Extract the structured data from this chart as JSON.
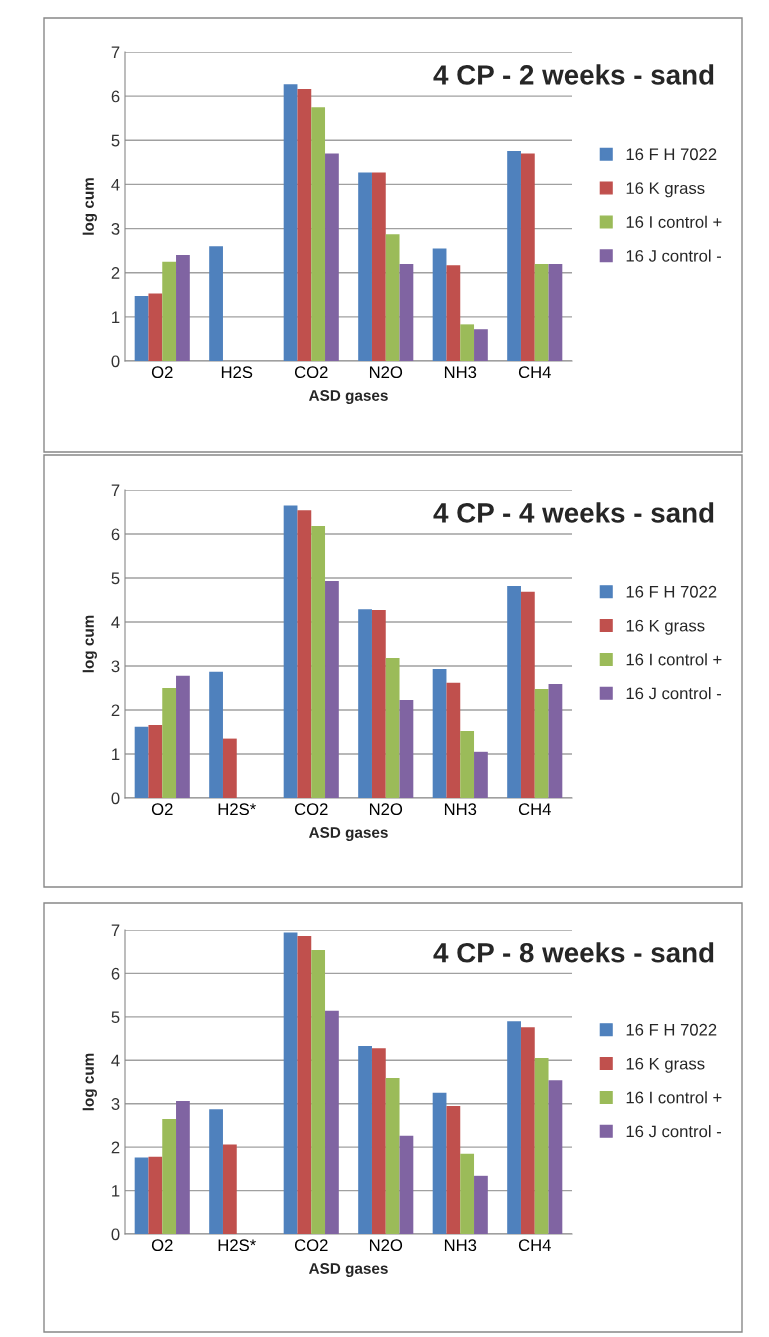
{
  "chart_data": [
    {
      "type": "bar",
      "title": "4 CP - 2 weeks - sand",
      "xlabel": "ASD gases",
      "ylabel": "log cum",
      "categories": [
        "O2",
        "H2S",
        "CO2",
        "N2O",
        "NH3",
        "CH4"
      ],
      "ylim": [
        0,
        7
      ],
      "yticks": [
        0,
        1,
        2,
        3,
        4,
        5,
        6,
        7
      ],
      "grid": "y",
      "legend": "right",
      "series": [
        {
          "name": "16 F H 7022",
          "color": "#4f81bd",
          "values": [
            1.47,
            2.6,
            6.27,
            4.27,
            2.55,
            4.76
          ]
        },
        {
          "name": "16 K grass",
          "color": "#c0504d",
          "values": [
            1.53,
            null,
            6.16,
            4.27,
            2.17,
            4.7
          ]
        },
        {
          "name": "16 I control +",
          "color": "#9bbb59",
          "values": [
            2.25,
            null,
            5.75,
            2.87,
            0.83,
            2.2
          ]
        },
        {
          "name": "16 J control -",
          "color": "#8064a2",
          "values": [
            2.4,
            null,
            4.7,
            2.2,
            0.72,
            2.2
          ]
        }
      ]
    },
    {
      "type": "bar",
      "title": "4 CP - 4 weeks - sand",
      "xlabel": "ASD gases",
      "ylabel": "log cum",
      "categories": [
        "O2",
        "H2S*",
        "CO2",
        "N2O",
        "NH3",
        "CH4"
      ],
      "ylim": [
        0,
        7
      ],
      "yticks": [
        0,
        1,
        2,
        3,
        4,
        5,
        6,
        7
      ],
      "grid": "y",
      "legend": "right",
      "series": [
        {
          "name": "16 F H 7022",
          "color": "#4f81bd",
          "values": [
            1.62,
            2.87,
            6.65,
            4.29,
            2.93,
            4.82
          ]
        },
        {
          "name": "16 K grass",
          "color": "#c0504d",
          "values": [
            1.66,
            1.35,
            6.54,
            4.27,
            2.62,
            4.69
          ]
        },
        {
          "name": "16 I control +",
          "color": "#9bbb59",
          "values": [
            2.5,
            null,
            6.18,
            3.18,
            1.52,
            2.48
          ]
        },
        {
          "name": "16 J control -",
          "color": "#8064a2",
          "values": [
            2.78,
            null,
            4.93,
            2.23,
            1.05,
            2.59
          ]
        }
      ]
    },
    {
      "type": "bar",
      "title": "4 CP - 8 weeks - sand",
      "xlabel": "ASD gases",
      "ylabel": "log cum",
      "categories": [
        "O2",
        "H2S*",
        "CO2",
        "N2O",
        "NH3",
        "CH4"
      ],
      "ylim": [
        0,
        7
      ],
      "yticks": [
        0,
        1,
        2,
        3,
        4,
        5,
        6,
        7
      ],
      "grid": "y",
      "legend": "right",
      "series": [
        {
          "name": "16 F H 7022",
          "color": "#4f81bd",
          "values": [
            1.76,
            2.87,
            6.94,
            4.33,
            3.25,
            4.9
          ]
        },
        {
          "name": "16 K grass",
          "color": "#c0504d",
          "values": [
            1.78,
            2.06,
            6.86,
            4.28,
            2.95,
            4.76
          ]
        },
        {
          "name": "16 I control +",
          "color": "#9bbb59",
          "values": [
            2.65,
            null,
            6.54,
            3.59,
            1.85,
            4.05
          ]
        },
        {
          "name": "16 J control -",
          "color": "#8064a2",
          "values": [
            3.06,
            null,
            5.14,
            2.26,
            1.34,
            3.54
          ]
        }
      ]
    }
  ]
}
